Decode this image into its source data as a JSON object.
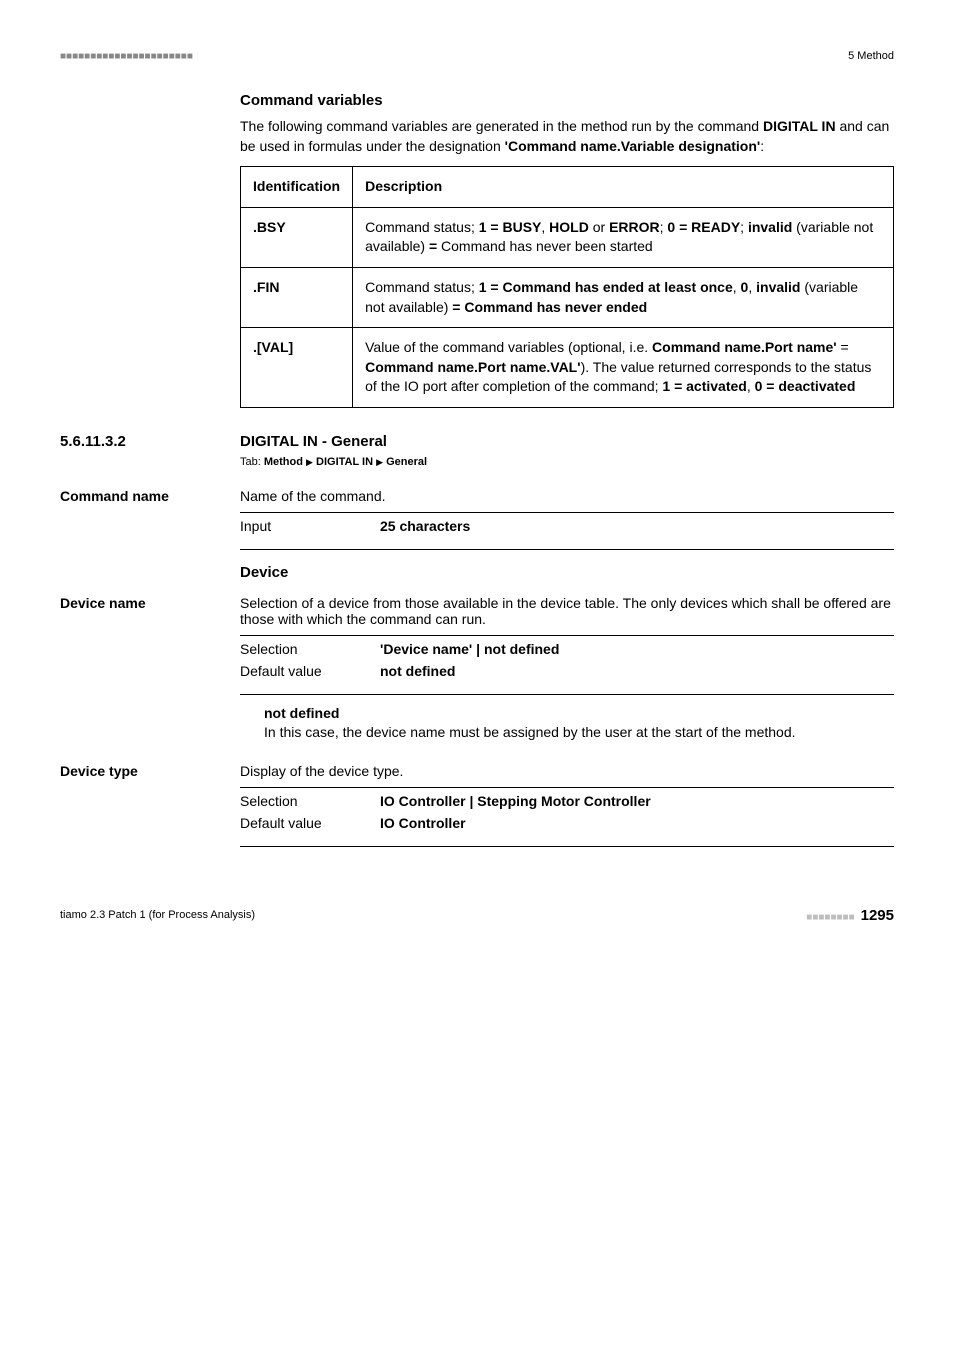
{
  "header": {
    "right": "5 Method"
  },
  "cmdvars": {
    "title": "Command variables",
    "intro_1": "The following command variables are generated in the method run by the command ",
    "intro_bold1": "DIGITAL IN",
    "intro_2": " and can be used in formulas under the designation ",
    "intro_bold2": "'Command name.Variable designation'",
    "intro_3": ":",
    "th1": "Identification",
    "th2": "Description",
    "rows": [
      {
        "id": ".BSY",
        "parts": [
          {
            "t": "Command status; ",
            "b": false
          },
          {
            "t": "1 = BUSY",
            "b": true
          },
          {
            "t": ", ",
            "b": false
          },
          {
            "t": "HOLD",
            "b": true
          },
          {
            "t": " or ",
            "b": false
          },
          {
            "t": "ERROR",
            "b": true
          },
          {
            "t": "; ",
            "b": false
          },
          {
            "t": "0 = READY",
            "b": true
          },
          {
            "t": "; ",
            "b": false
          },
          {
            "t": "invalid",
            "b": true
          },
          {
            "t": " (variable not available) ",
            "b": false
          },
          {
            "t": "=",
            "b": true
          },
          {
            "t": " Command has never been started",
            "b": false
          }
        ]
      },
      {
        "id": ".FIN",
        "parts": [
          {
            "t": "Command status; ",
            "b": false
          },
          {
            "t": "1 = Command has ended at least once",
            "b": true
          },
          {
            "t": ", ",
            "b": false
          },
          {
            "t": "0",
            "b": true
          },
          {
            "t": ", ",
            "b": false
          },
          {
            "t": "invalid",
            "b": true
          },
          {
            "t": " (variable not available) ",
            "b": false
          },
          {
            "t": "= Command has never ended",
            "b": true
          }
        ]
      },
      {
        "id": ".[VAL]",
        "parts": [
          {
            "t": "Value of the command variables (optional, i.e. ",
            "b": false
          },
          {
            "t": "Command name.Port name'",
            "b": true
          },
          {
            "t": " = ",
            "b": false
          },
          {
            "t": "Command name.Port name.VAL'",
            "b": true
          },
          {
            "t": "). The value returned corresponds to the status of the IO port after completion of the command; ",
            "b": false
          },
          {
            "t": "1 = activated",
            "b": true
          },
          {
            "t": ", ",
            "b": false
          },
          {
            "t": "0 = deactivated",
            "b": true
          }
        ]
      }
    ]
  },
  "sectnum": "5.6.11.3.2",
  "secttitle": "DIGITAL IN - General",
  "tab": {
    "prefix": "Tab: ",
    "p1": "Method",
    "p2": "DIGITAL IN",
    "p3": "General"
  },
  "cmdname": {
    "label": "Command name",
    "desc": "Name of the command.",
    "input": "Input",
    "chars": "25 characters"
  },
  "device": {
    "header": "Device",
    "name_label": "Device name",
    "name_desc": "Selection of a device from those available in the device table. The only devices which shall be offered are those with which the command can run.",
    "sel": "Selection",
    "sel_val": "'Device name' | not defined",
    "def": "Default value",
    "def_val": "not defined",
    "nd_title": "not defined",
    "nd_body": "In this case, the device name must be assigned by the user at the start of the method.",
    "type_label": "Device type",
    "type_desc": "Display of the device type.",
    "type_sel_val": "IO Controller | Stepping Motor Controller",
    "type_def_val": "IO Controller"
  },
  "footer": {
    "left": "tiamo 2.3 Patch 1 (for Process Analysis)",
    "page": "1295"
  }
}
